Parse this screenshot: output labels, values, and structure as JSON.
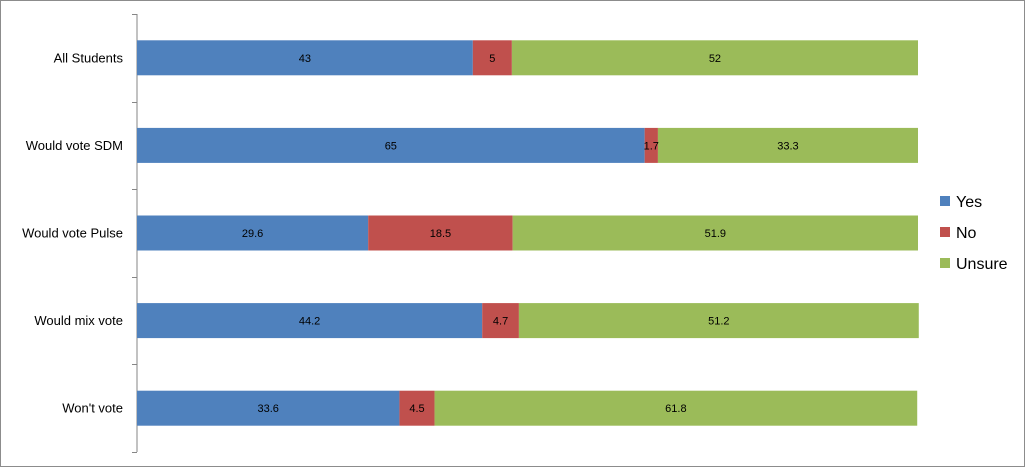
{
  "chart_data": {
    "type": "bar",
    "orientation": "horizontal",
    "stacked": true,
    "categories": [
      "All Students",
      "Would vote SDM",
      "Would vote Pulse",
      "Would mix vote",
      "Won't vote"
    ],
    "series": [
      {
        "name": "Yes",
        "color": "#4f81bd",
        "values": [
          43,
          65,
          29.6,
          44.2,
          33.6
        ]
      },
      {
        "name": "No",
        "color": "#c0504d",
        "values": [
          5,
          1.7,
          18.5,
          4.7,
          4.5
        ]
      },
      {
        "name": "Unsure",
        "color": "#9bbb59",
        "values": [
          52,
          33.3,
          51.9,
          51.2,
          61.8
        ]
      }
    ],
    "xlim": [
      0,
      100
    ],
    "grid": false,
    "legend_position": "right",
    "data_labels": true
  }
}
